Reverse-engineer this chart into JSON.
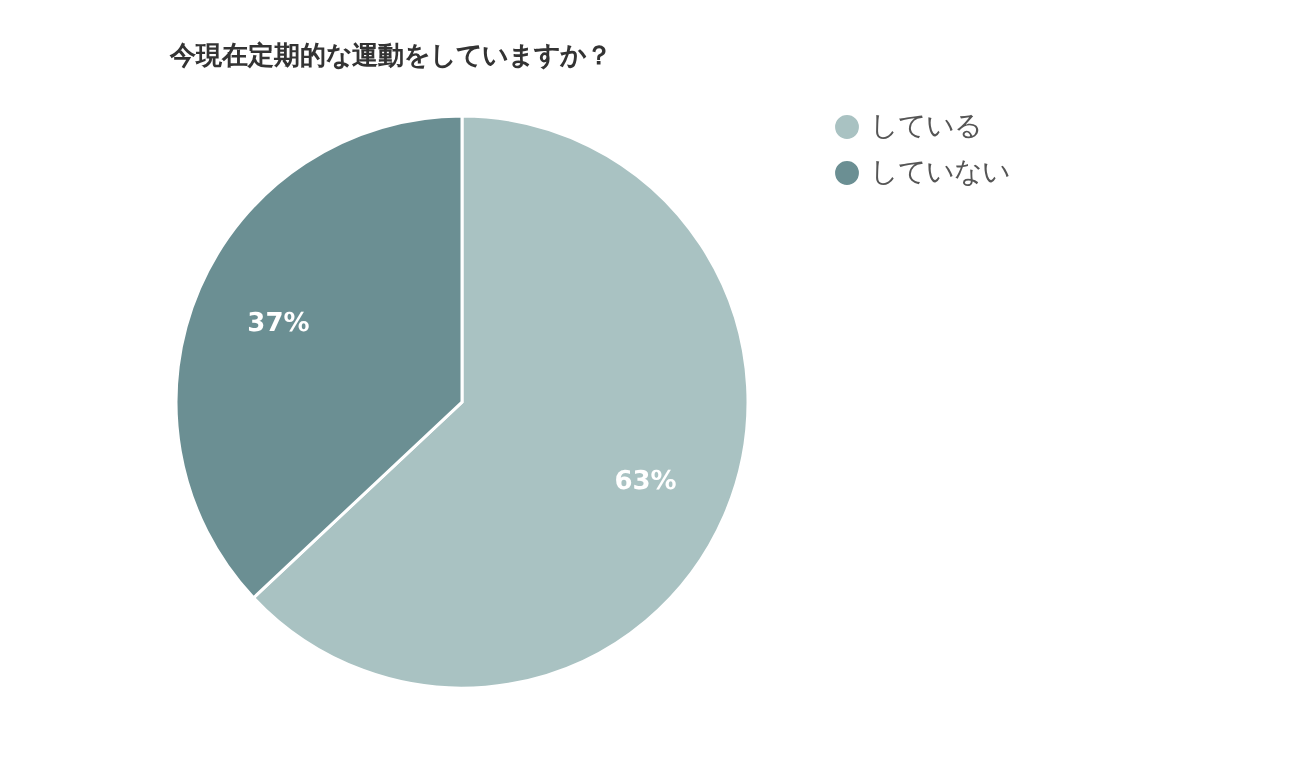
{
  "chart_data": {
    "type": "pie",
    "title": "今現在定期的な運動をしていますか？",
    "categories": [
      "している",
      "していない"
    ],
    "values": [
      63,
      37
    ],
    "colors": [
      "#a9c2c2",
      "#6b8f93"
    ],
    "value_labels": [
      "63%",
      "37%"
    ],
    "legend": "right"
  }
}
